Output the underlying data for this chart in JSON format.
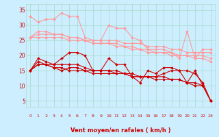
{
  "background_color": "#cceeff",
  "grid_color": "#aaddcc",
  "xlabel": "Vent moyen/en rafales ( km/h )",
  "xlabel_color": "#cc0000",
  "tick_color": "#cc0000",
  "ylim": [
    3,
    37
  ],
  "xlim": [
    -0.5,
    23.5
  ],
  "yticks": [
    5,
    10,
    15,
    20,
    25,
    30,
    35
  ],
  "xticks": [
    0,
    1,
    2,
    3,
    4,
    5,
    6,
    7,
    8,
    9,
    10,
    11,
    12,
    13,
    14,
    15,
    16,
    17,
    18,
    19,
    20,
    21,
    22,
    23
  ],
  "series": [
    {
      "name": "line1_light",
      "color": "#ff9999",
      "lw": 0.8,
      "marker": "D",
      "ms": 2.0,
      "data_x": [
        0,
        1,
        2,
        3,
        4,
        5,
        6,
        7,
        8,
        9,
        10,
        11,
        12,
        13,
        14,
        15,
        16,
        17,
        18,
        19,
        20,
        21,
        22,
        23
      ],
      "data_y": [
        33,
        31,
        32,
        32,
        34,
        33,
        33,
        26,
        25,
        25,
        30,
        29,
        29,
        26,
        25,
        22,
        22,
        22,
        21,
        19,
        28,
        19,
        22,
        22
      ]
    },
    {
      "name": "line2_light",
      "color": "#ff9999",
      "lw": 0.8,
      "marker": "D",
      "ms": 2.0,
      "data_x": [
        0,
        1,
        2,
        3,
        4,
        5,
        6,
        7,
        8,
        9,
        10,
        11,
        12,
        13,
        14,
        15,
        16,
        17,
        18,
        19,
        20,
        21,
        22,
        23
      ],
      "data_y": [
        26,
        28,
        28,
        27,
        27,
        26,
        26,
        25,
        25,
        25,
        25,
        25,
        24,
        24,
        24,
        23,
        23,
        23,
        22,
        22,
        21,
        21,
        21,
        21
      ]
    },
    {
      "name": "line3_light",
      "color": "#ff9999",
      "lw": 0.8,
      "marker": "D",
      "ms": 2.0,
      "data_x": [
        0,
        1,
        2,
        3,
        4,
        5,
        6,
        7,
        8,
        9,
        10,
        11,
        12,
        13,
        14,
        15,
        16,
        17,
        18,
        19,
        20,
        21,
        22,
        23
      ],
      "data_y": [
        26,
        27,
        27,
        27,
        27,
        26,
        26,
        25,
        24,
        24,
        24,
        24,
        23,
        23,
        22,
        22,
        21,
        21,
        21,
        20,
        20,
        20,
        20,
        19
      ]
    },
    {
      "name": "line4_light",
      "color": "#ff9999",
      "lw": 0.8,
      "marker": "D",
      "ms": 2.0,
      "data_x": [
        0,
        1,
        2,
        3,
        4,
        5,
        6,
        7,
        8,
        9,
        10,
        11,
        12,
        13,
        14,
        15,
        16,
        17,
        18,
        19,
        20,
        21,
        22,
        23
      ],
      "data_y": [
        26,
        26,
        26,
        26,
        26,
        25,
        25,
        25,
        24,
        24,
        24,
        23,
        23,
        22,
        22,
        21,
        21,
        21,
        20,
        20,
        20,
        19,
        19,
        18
      ]
    },
    {
      "name": "line5_dark",
      "color": "#cc0000",
      "lw": 0.8,
      "marker": "D",
      "ms": 2.0,
      "data_x": [
        0,
        1,
        2,
        3,
        4,
        5,
        6,
        7,
        8,
        9,
        10,
        11,
        12,
        13,
        14,
        15,
        16,
        17,
        18,
        19,
        20,
        21,
        22,
        23
      ],
      "data_y": [
        15,
        19,
        18,
        17,
        19,
        21,
        21,
        20,
        15,
        15,
        19,
        17,
        17,
        13,
        11,
        15,
        14,
        16,
        16,
        15,
        11,
        15,
        10,
        5
      ]
    },
    {
      "name": "line6_dark",
      "color": "#cc0000",
      "lw": 0.8,
      "marker": "D",
      "ms": 2.0,
      "data_x": [
        0,
        1,
        2,
        3,
        4,
        5,
        6,
        7,
        8,
        9,
        10,
        11,
        12,
        13,
        14,
        15,
        16,
        17,
        18,
        19,
        20,
        21,
        22,
        23
      ],
      "data_y": [
        15,
        18,
        17,
        17,
        17,
        17,
        17,
        16,
        15,
        15,
        15,
        15,
        14,
        14,
        13,
        13,
        13,
        14,
        15,
        15,
        15,
        14,
        11,
        5
      ]
    },
    {
      "name": "line7_dark",
      "color": "#cc0000",
      "lw": 0.8,
      "marker": "D",
      "ms": 2.0,
      "data_x": [
        0,
        1,
        2,
        3,
        4,
        5,
        6,
        7,
        8,
        9,
        10,
        11,
        12,
        13,
        14,
        15,
        16,
        17,
        18,
        19,
        20,
        21,
        22,
        23
      ],
      "data_y": [
        15,
        17,
        17,
        16,
        16,
        15,
        15,
        15,
        15,
        15,
        15,
        14,
        14,
        13,
        13,
        13,
        12,
        12,
        12,
        12,
        11,
        11,
        10,
        5
      ]
    },
    {
      "name": "line8_dark",
      "color": "#cc0000",
      "lw": 0.8,
      "marker": "D",
      "ms": 2.0,
      "data_x": [
        0,
        1,
        2,
        3,
        4,
        5,
        6,
        7,
        8,
        9,
        10,
        11,
        12,
        13,
        14,
        15,
        16,
        17,
        18,
        19,
        20,
        21,
        22,
        23
      ],
      "data_y": [
        15,
        17,
        17,
        16,
        15,
        16,
        16,
        15,
        14,
        14,
        14,
        14,
        14,
        13,
        13,
        13,
        13,
        13,
        12,
        12,
        11,
        10,
        10,
        5
      ]
    }
  ]
}
